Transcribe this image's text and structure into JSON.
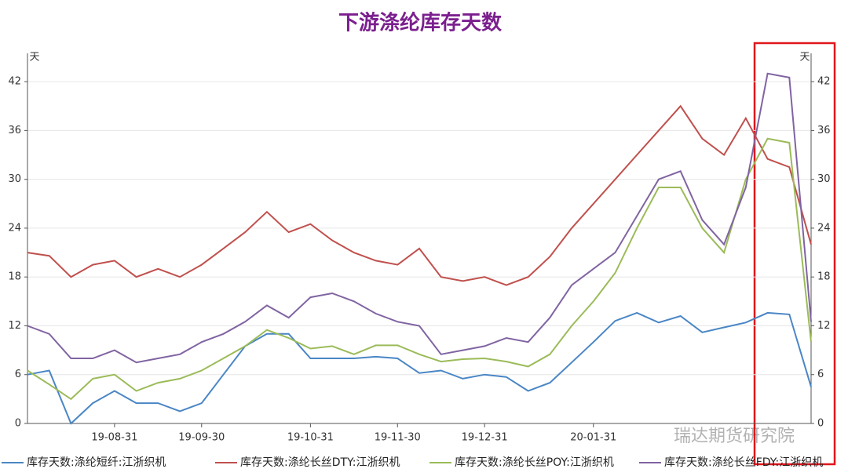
{
  "chart_data": {
    "type": "line",
    "title": "下游涤纶库存天数",
    "y_label": "天",
    "y2_label": "天",
    "watermark": "瑞达期货研究院",
    "categories": [
      null,
      null,
      null,
      null,
      "19-08-31",
      null,
      null,
      null,
      "19-09-30",
      null,
      null,
      null,
      null,
      "19-10-31",
      null,
      null,
      null,
      "19-11-30",
      null,
      null,
      null,
      "19-12-31",
      null,
      null,
      null,
      null,
      "20-01-31",
      null,
      null,
      null,
      null,
      null,
      null,
      null,
      null,
      null,
      null
    ],
    "series": [
      {
        "name": "库存天数:涤纶短纤:江浙织机",
        "color": "#4a86c5",
        "values": [
          6,
          6.5,
          0,
          2.5,
          4,
          2.5,
          2.5,
          1.5,
          2.5,
          6,
          9.5,
          11,
          11,
          8,
          8,
          8,
          8.2,
          8,
          6.2,
          6.5,
          5.5,
          6,
          5.7,
          4,
          5,
          7.5,
          10,
          12.6,
          13.6,
          12.4,
          13.2,
          11.2,
          11.8,
          12.4,
          13.6,
          13.4,
          4.5
        ]
      },
      {
        "name": "库存天数:涤纶长丝DTY:江浙织机",
        "color": "#c0504d",
        "values": [
          21,
          20.6,
          18,
          19.5,
          20,
          18,
          19,
          18,
          19.5,
          21.5,
          23.5,
          26,
          23.5,
          24.5,
          22.5,
          21,
          20,
          19.5,
          21.5,
          18,
          17.5,
          18,
          17,
          18,
          20.5,
          24,
          27,
          30,
          33,
          36,
          39,
          35,
          33,
          37.5,
          32.5,
          31.5,
          22
        ]
      },
      {
        "name": "库存天数:涤纶长丝POY:江浙织机",
        "color": "#9bbb59",
        "values": [
          6.5,
          4.8,
          3,
          5.5,
          6,
          4,
          5,
          5.5,
          6.5,
          8,
          9.5,
          11.5,
          10.5,
          9.2,
          9.5,
          8.5,
          9.6,
          9.6,
          8.5,
          7.6,
          7.9,
          8,
          7.6,
          7,
          8.5,
          12,
          15,
          18.5,
          24,
          29,
          29,
          24,
          21,
          30,
          35,
          34.5,
          10
        ]
      },
      {
        "name": "库存天数:涤纶长丝FDY:江浙织机",
        "color": "#8064a2",
        "values": [
          12,
          11,
          8,
          8,
          9,
          7.5,
          8,
          8.5,
          10,
          11,
          12.5,
          14.5,
          13,
          15.5,
          16,
          15,
          13.5,
          12.5,
          12,
          8.5,
          9,
          9.5,
          10.5,
          10,
          13,
          17,
          19,
          21,
          25.5,
          30,
          31,
          25,
          22,
          29,
          43,
          42.5,
          12.5
        ]
      }
    ],
    "ylim": [
      0,
      45
    ],
    "yticks": [
      0,
      6,
      12,
      18,
      24,
      30,
      36,
      42
    ],
    "y2lim": [
      0,
      45
    ],
    "y2ticks": [
      0,
      6,
      12,
      18,
      24,
      30,
      36,
      42
    ],
    "grid": true
  }
}
